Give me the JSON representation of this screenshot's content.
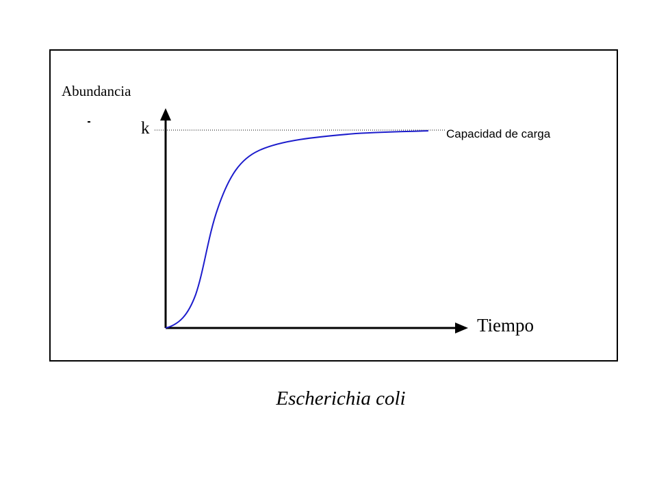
{
  "diagram": {
    "y_axis_label": "Abundancia",
    "x_axis_label": "Tiempo",
    "k_label": "k",
    "carrying_capacity_label": "Capacidad de carga",
    "caption": "Escherichia coli",
    "colors": {
      "curve": "#1c1ccc",
      "axes": "#000000",
      "frame": "#000000"
    }
  }
}
